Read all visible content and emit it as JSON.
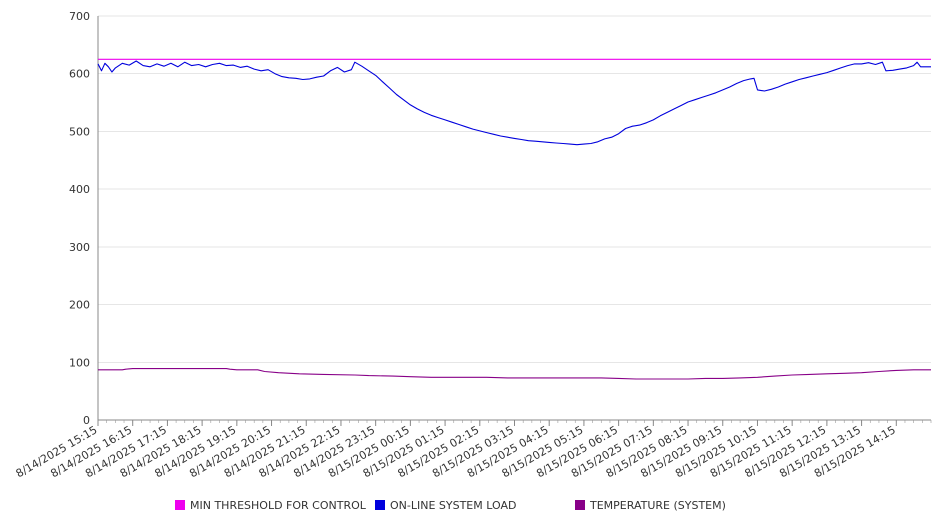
{
  "chart_data": {
    "type": "line",
    "x_tick_labels": [
      "8/14/2025 15:15",
      "8/14/2025 16:15",
      "8/14/2025 17:15",
      "8/14/2025 18:15",
      "8/14/2025 19:15",
      "8/14/2025 20:15",
      "8/14/2025 21:15",
      "8/14/2025 22:15",
      "8/14/2025 23:15",
      "8/15/2025 00:15",
      "8/15/2025 01:15",
      "8/15/2025 02:15",
      "8/15/2025 03:15",
      "8/15/2025 04:15",
      "8/15/2025 05:15",
      "8/15/2025 06:15",
      "8/15/2025 07:15",
      "8/15/2025 08:15",
      "8/15/2025 09:15",
      "8/15/2025 10:15",
      "8/15/2025 11:15",
      "8/15/2025 12:15",
      "8/15/2025 13:15",
      "8/15/2025 14:15"
    ],
    "x_range_hours": [
      0,
      24
    ],
    "ylim": [
      0,
      700
    ],
    "y_ticks": [
      0,
      100,
      200,
      300,
      400,
      500,
      600,
      700
    ],
    "grid": "horizontal",
    "legend_position": "bottom",
    "series": [
      {
        "name": "MIN THRESHOLD FOR CONTROL",
        "color": "#ee00ee",
        "points": [
          [
            0,
            625
          ],
          [
            24,
            625
          ]
        ]
      },
      {
        "name": "ON-LINE SYSTEM LOAD",
        "color": "#0000dd",
        "points": [
          [
            0,
            617
          ],
          [
            0.1,
            605
          ],
          [
            0.2,
            618
          ],
          [
            0.3,
            612
          ],
          [
            0.4,
            603
          ],
          [
            0.5,
            610
          ],
          [
            0.7,
            618
          ],
          [
            0.9,
            615
          ],
          [
            1.1,
            622
          ],
          [
            1.3,
            614
          ],
          [
            1.5,
            612
          ],
          [
            1.7,
            617
          ],
          [
            1.9,
            613
          ],
          [
            2.1,
            618
          ],
          [
            2.3,
            612
          ],
          [
            2.5,
            620
          ],
          [
            2.7,
            614
          ],
          [
            2.9,
            616
          ],
          [
            3.1,
            612
          ],
          [
            3.3,
            616
          ],
          [
            3.5,
            618
          ],
          [
            3.7,
            614
          ],
          [
            3.9,
            615
          ],
          [
            4.1,
            611
          ],
          [
            4.3,
            613
          ],
          [
            4.5,
            608
          ],
          [
            4.7,
            605
          ],
          [
            4.9,
            607
          ],
          [
            5.1,
            600
          ],
          [
            5.3,
            595
          ],
          [
            5.5,
            593
          ],
          [
            5.7,
            592
          ],
          [
            5.9,
            590
          ],
          [
            6.1,
            591
          ],
          [
            6.3,
            594
          ],
          [
            6.5,
            596
          ],
          [
            6.7,
            605
          ],
          [
            6.9,
            611
          ],
          [
            7.1,
            603
          ],
          [
            7.3,
            607
          ],
          [
            7.4,
            620
          ],
          [
            7.6,
            613
          ],
          [
            7.8,
            605
          ],
          [
            8.0,
            597
          ],
          [
            8.2,
            586
          ],
          [
            8.4,
            575
          ],
          [
            8.6,
            564
          ],
          [
            8.8,
            555
          ],
          [
            9.0,
            546
          ],
          [
            9.2,
            539
          ],
          [
            9.4,
            533
          ],
          [
            9.6,
            528
          ],
          [
            9.8,
            524
          ],
          [
            10.0,
            520
          ],
          [
            10.2,
            516
          ],
          [
            10.4,
            512
          ],
          [
            10.6,
            508
          ],
          [
            10.8,
            504
          ],
          [
            11.0,
            501
          ],
          [
            11.2,
            498
          ],
          [
            11.4,
            495
          ],
          [
            11.6,
            492
          ],
          [
            11.8,
            490
          ],
          [
            12.0,
            488
          ],
          [
            12.2,
            486
          ],
          [
            12.4,
            484
          ],
          [
            12.6,
            483
          ],
          [
            12.8,
            482
          ],
          [
            13.0,
            481
          ],
          [
            13.2,
            480
          ],
          [
            13.4,
            479
          ],
          [
            13.6,
            478
          ],
          [
            13.8,
            477
          ],
          [
            14.0,
            478
          ],
          [
            14.2,
            479
          ],
          [
            14.4,
            482
          ],
          [
            14.6,
            487
          ],
          [
            14.8,
            490
          ],
          [
            15.0,
            496
          ],
          [
            15.2,
            505
          ],
          [
            15.4,
            509
          ],
          [
            15.6,
            511
          ],
          [
            15.8,
            515
          ],
          [
            16.0,
            520
          ],
          [
            16.2,
            527
          ],
          [
            16.4,
            533
          ],
          [
            16.6,
            539
          ],
          [
            16.8,
            545
          ],
          [
            17.0,
            551
          ],
          [
            17.2,
            555
          ],
          [
            17.4,
            559
          ],
          [
            17.6,
            563
          ],
          [
            17.8,
            567
          ],
          [
            18.0,
            572
          ],
          [
            18.2,
            577
          ],
          [
            18.4,
            583
          ],
          [
            18.6,
            588
          ],
          [
            18.8,
            591
          ],
          [
            18.9,
            592
          ],
          [
            19.0,
            572
          ],
          [
            19.2,
            570
          ],
          [
            19.4,
            573
          ],
          [
            19.6,
            577
          ],
          [
            19.8,
            582
          ],
          [
            20.0,
            586
          ],
          [
            20.2,
            590
          ],
          [
            20.4,
            593
          ],
          [
            20.6,
            596
          ],
          [
            20.8,
            599
          ],
          [
            21.0,
            602
          ],
          [
            21.2,
            606
          ],
          [
            21.4,
            610
          ],
          [
            21.6,
            614
          ],
          [
            21.8,
            617
          ],
          [
            22.0,
            617
          ],
          [
            22.2,
            619
          ],
          [
            22.4,
            616
          ],
          [
            22.6,
            620
          ],
          [
            22.7,
            605
          ],
          [
            22.9,
            606
          ],
          [
            23.1,
            608
          ],
          [
            23.3,
            610
          ],
          [
            23.5,
            614
          ],
          [
            23.6,
            620
          ],
          [
            23.7,
            612
          ],
          [
            24.0,
            612
          ]
        ]
      },
      {
        "name": "TEMPERATURE (SYSTEM)",
        "color": "#880088",
        "points": [
          [
            0,
            87
          ],
          [
            0.7,
            87
          ],
          [
            0.8,
            88
          ],
          [
            1.0,
            89
          ],
          [
            2.0,
            89
          ],
          [
            3.0,
            89
          ],
          [
            3.7,
            89
          ],
          [
            3.8,
            88
          ],
          [
            4.0,
            87
          ],
          [
            4.6,
            87
          ],
          [
            4.8,
            84
          ],
          [
            5.2,
            82
          ],
          [
            5.8,
            80
          ],
          [
            6.5,
            79
          ],
          [
            7.4,
            78
          ],
          [
            7.8,
            77
          ],
          [
            8.5,
            76
          ],
          [
            9.0,
            75
          ],
          [
            9.6,
            74
          ],
          [
            10.5,
            74
          ],
          [
            11.2,
            74
          ],
          [
            11.8,
            73
          ],
          [
            12.5,
            73
          ],
          [
            13.5,
            73
          ],
          [
            14.5,
            73
          ],
          [
            15.0,
            72
          ],
          [
            15.5,
            71
          ],
          [
            16.5,
            71
          ],
          [
            17.0,
            71
          ],
          [
            17.5,
            72
          ],
          [
            18.0,
            72
          ],
          [
            18.5,
            73
          ],
          [
            19.0,
            74
          ],
          [
            19.5,
            76
          ],
          [
            20.0,
            78
          ],
          [
            20.5,
            79
          ],
          [
            21.0,
            80
          ],
          [
            21.5,
            81
          ],
          [
            22.0,
            82
          ],
          [
            22.5,
            84
          ],
          [
            23.0,
            86
          ],
          [
            23.5,
            87
          ],
          [
            24.0,
            87
          ]
        ]
      }
    ]
  }
}
